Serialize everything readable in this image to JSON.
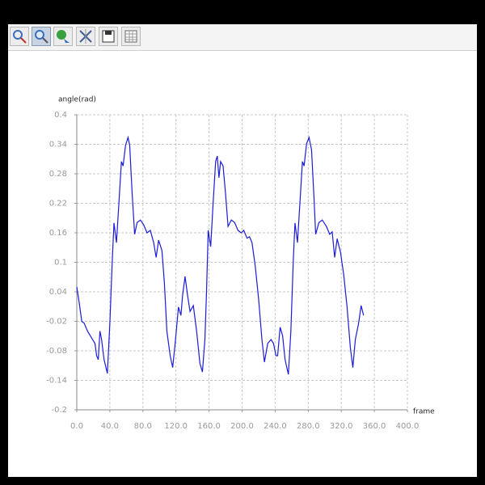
{
  "chart_data": {
    "type": "line",
    "xlabel": "frame",
    "ylabel": "angle(rad)",
    "x": [
      0,
      3,
      6,
      9,
      13,
      18,
      22,
      24,
      26,
      28,
      30,
      33,
      37,
      40,
      43,
      45,
      48,
      51,
      54,
      56,
      59,
      62,
      64,
      67,
      70,
      73,
      77,
      81,
      85,
      89,
      93,
      96,
      99,
      103,
      106,
      109,
      113,
      116,
      119,
      123,
      126,
      128,
      131,
      134,
      137,
      141,
      145,
      149,
      152,
      155,
      157,
      159,
      162,
      165,
      168,
      170,
      172,
      174,
      177,
      180,
      183,
      187,
      191,
      195,
      199,
      202,
      206,
      209,
      212,
      216,
      220,
      224,
      227,
      231,
      235,
      238,
      241,
      243,
      246,
      249,
      252,
      256,
      259,
      262,
      264,
      267,
      270,
      273,
      275,
      278,
      281,
      284,
      287,
      289,
      293,
      297,
      302,
      306,
      309,
      312,
      315,
      319,
      323,
      327,
      331,
      334,
      337,
      341,
      344,
      347
    ],
    "values": [
      0.05,
      0.017,
      -0.02,
      -0.024,
      -0.04,
      -0.054,
      -0.065,
      -0.09,
      -0.098,
      -0.04,
      -0.057,
      -0.098,
      -0.126,
      -0.024,
      0.107,
      0.18,
      0.14,
      0.222,
      0.305,
      0.296,
      0.338,
      0.354,
      0.338,
      0.239,
      0.157,
      0.181,
      0.186,
      0.176,
      0.16,
      0.165,
      0.14,
      0.11,
      0.145,
      0.124,
      0.058,
      -0.04,
      -0.09,
      -0.114,
      -0.065,
      0.009,
      -0.008,
      0.033,
      0.071,
      0.033,
      0.0,
      0.012,
      -0.04,
      -0.106,
      -0.123,
      -0.057,
      0.042,
      0.165,
      0.132,
      0.222,
      0.305,
      0.316,
      0.272,
      0.305,
      0.296,
      0.239,
      0.173,
      0.186,
      0.181,
      0.165,
      0.16,
      0.165,
      0.149,
      0.152,
      0.14,
      0.091,
      0.025,
      -0.057,
      -0.103,
      -0.065,
      -0.057,
      -0.065,
      -0.09,
      -0.09,
      -0.032,
      -0.049,
      -0.098,
      -0.128,
      -0.04,
      0.107,
      0.18,
      0.14,
      0.222,
      0.305,
      0.296,
      0.341,
      0.354,
      0.329,
      0.231,
      0.157,
      0.181,
      0.186,
      0.173,
      0.157,
      0.162,
      0.11,
      0.148,
      0.121,
      0.074,
      0.009,
      -0.074,
      -0.114,
      -0.057,
      -0.024,
      0.012,
      -0.008
    ],
    "color": "#1c1cd8",
    "xlim": [
      0,
      400
    ],
    "ylim": [
      -0.2,
      0.4
    ],
    "xticks": [
      {
        "value": 0,
        "label": "0.0"
      },
      {
        "value": 40,
        "label": "40.0"
      },
      {
        "value": 80,
        "label": "80.0"
      },
      {
        "value": 120,
        "label": "120.0"
      },
      {
        "value": 160,
        "label": "160.0"
      },
      {
        "value": 200,
        "label": "200.0"
      },
      {
        "value": 240,
        "label": "240.0"
      },
      {
        "value": 280,
        "label": "280.0"
      },
      {
        "value": 320,
        "label": "320.0"
      },
      {
        "value": 360,
        "label": "360.0"
      },
      {
        "value": 400,
        "label": "400.0"
      }
    ],
    "yticks": [
      -0.2,
      -0.14,
      -0.08,
      -0.02,
      0.04,
      0.1,
      0.16,
      0.22,
      0.28,
      0.34,
      0.4
    ],
    "grid": true
  }
}
